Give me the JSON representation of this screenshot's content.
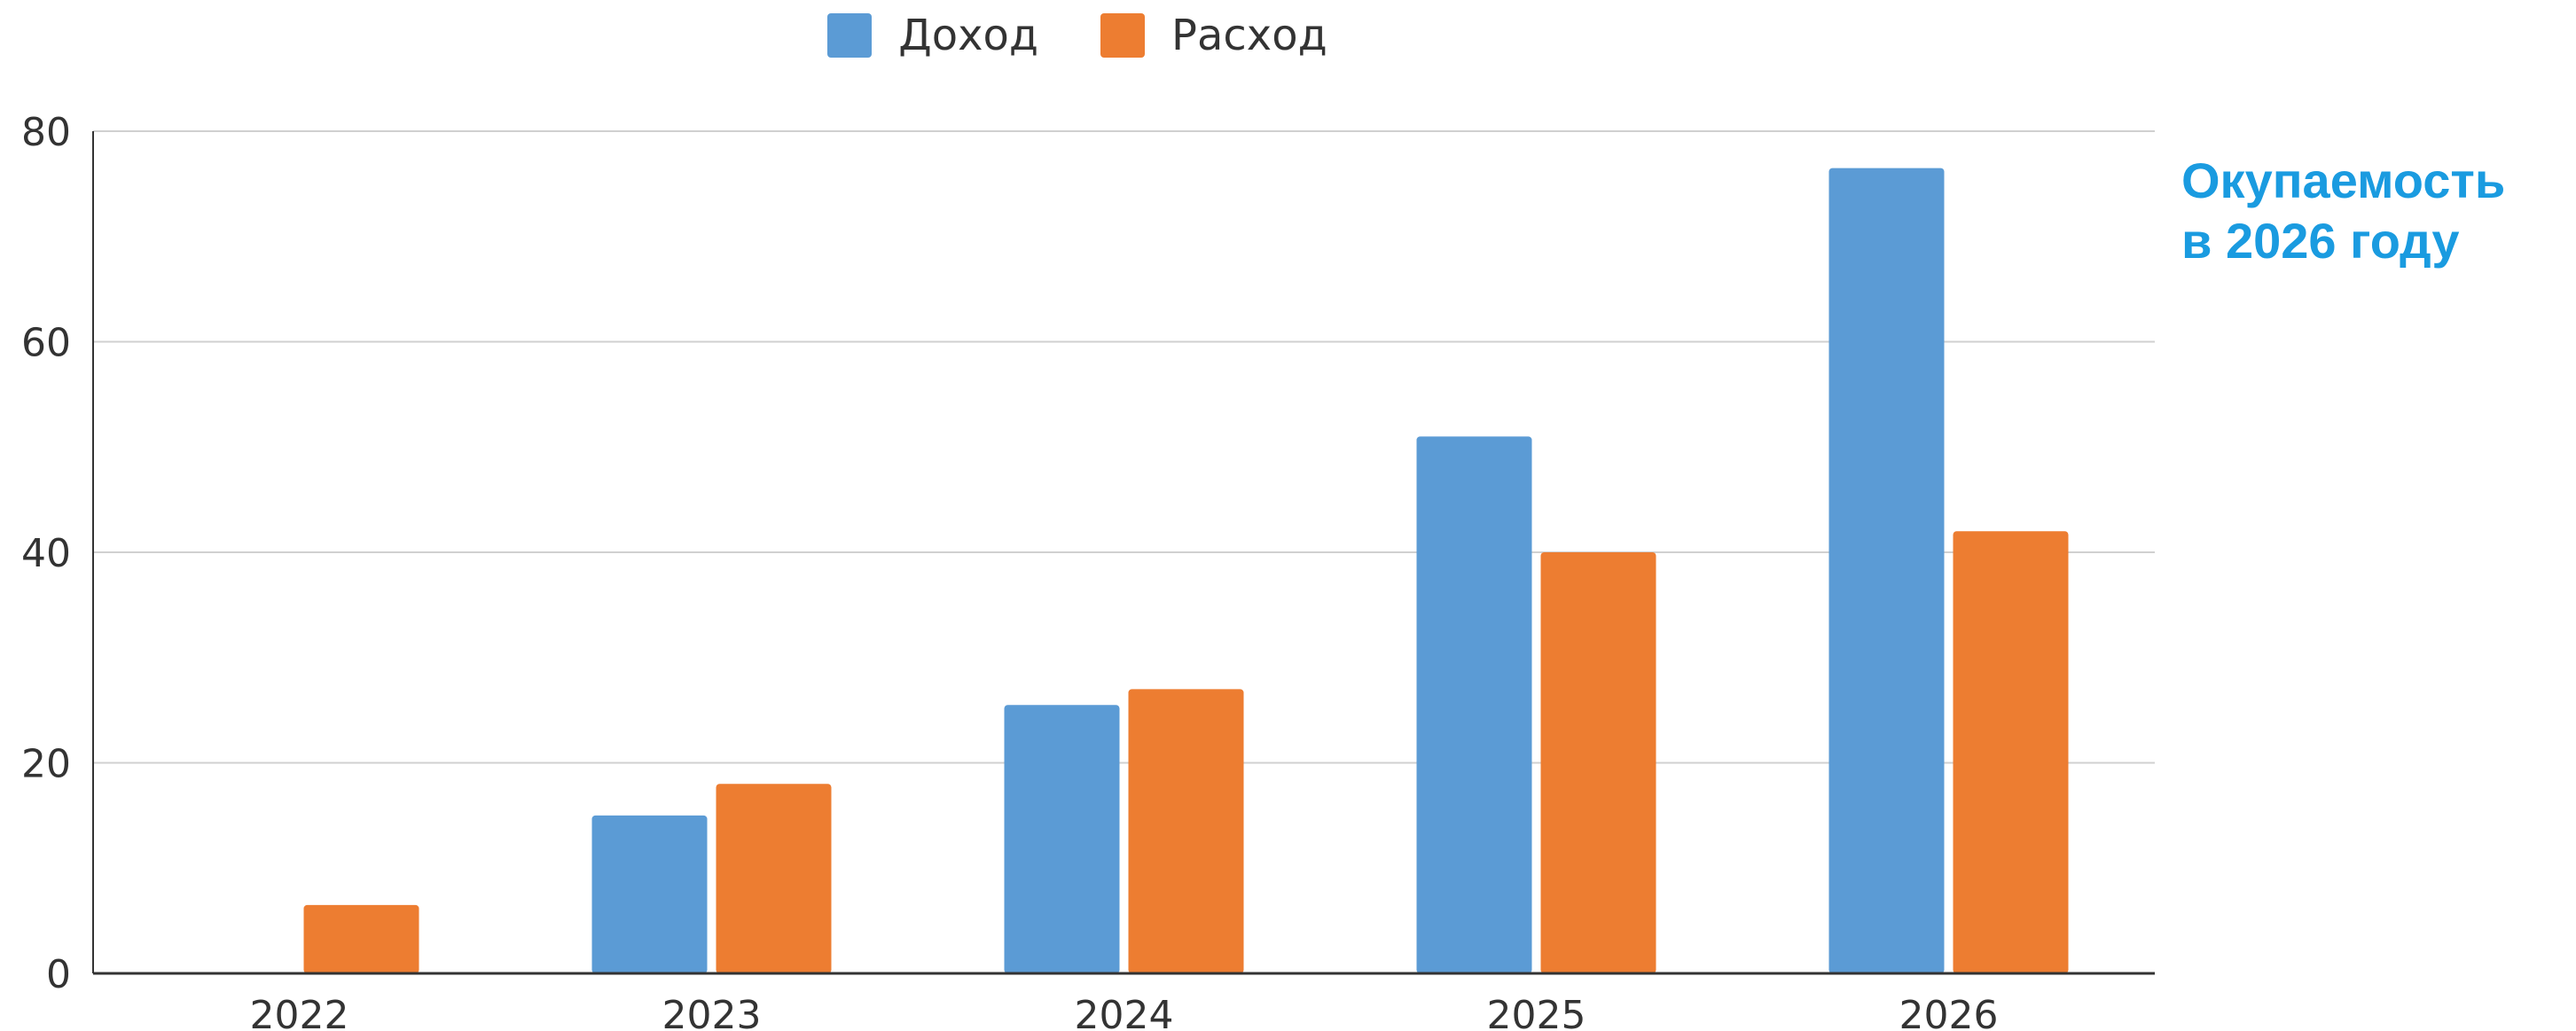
{
  "chart_data": {
    "type": "bar",
    "categories": [
      "2022",
      "2023",
      "2024",
      "2025",
      "2026"
    ],
    "series": [
      {
        "name": "Доход",
        "values": [
          0,
          15,
          25.5,
          51,
          76.5
        ],
        "color": "#5b9bd5"
      },
      {
        "name": "Расход",
        "values": [
          6.5,
          18,
          27,
          40,
          42
        ],
        "color": "#ed7d31"
      }
    ],
    "ylim": [
      0,
      80
    ],
    "yticks": [
      "0",
      "20",
      "40",
      "60",
      "80"
    ],
    "grid": true,
    "legend_position": "top"
  },
  "annotation": {
    "line1": "Окупаемость",
    "line2": "в 2026 году"
  }
}
